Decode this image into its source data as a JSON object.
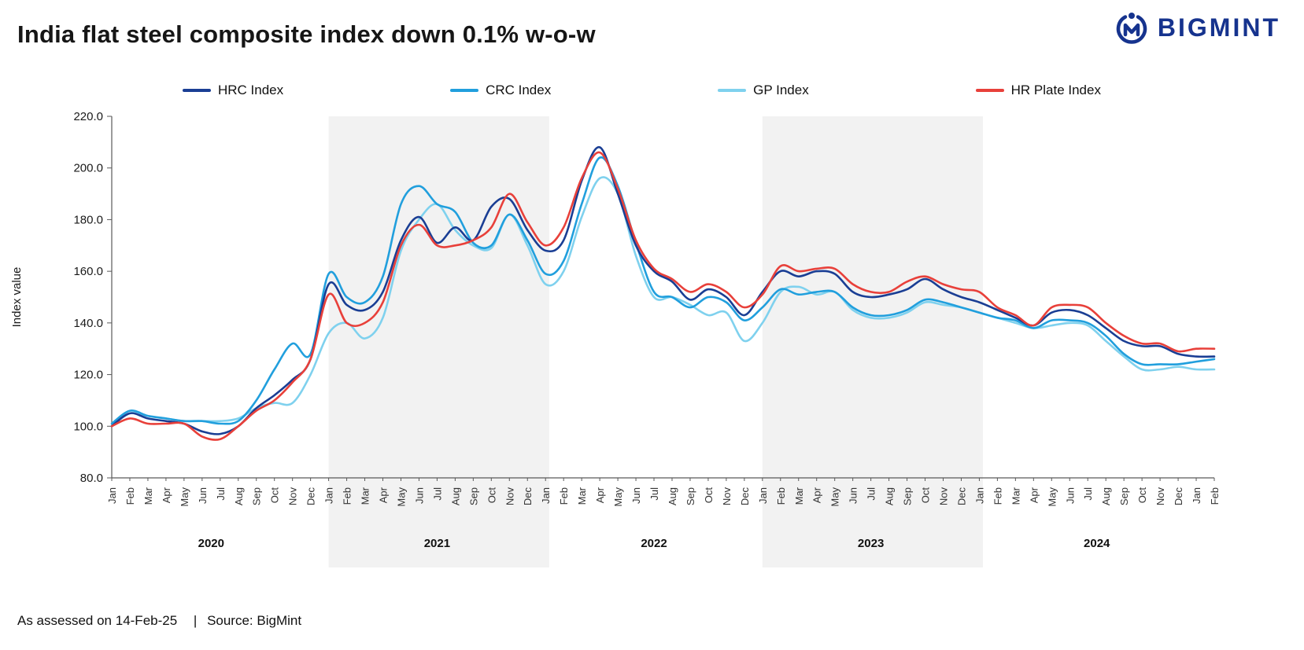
{
  "header": {
    "title": "India flat steel composite index down 0.1% w-o-w",
    "brand": "BIGMINT"
  },
  "footer": {
    "assessed": "As assessed on 14-Feb-25",
    "separator": "|",
    "source": "Source: BigMint"
  },
  "chart_data": {
    "type": "line",
    "title": "India flat steel composite index down 0.1% w-o-w",
    "ylabel": "Index value",
    "ylim": [
      80,
      220
    ],
    "yticks": [
      80,
      100,
      120,
      140,
      160,
      180,
      200,
      220
    ],
    "ytick_labels": [
      "80.0",
      "100.0",
      "120.0",
      "140.0",
      "160.0",
      "180.0",
      "200.0",
      "220.0"
    ],
    "grid": false,
    "legend_position": "top",
    "axis_color": "#595959",
    "band_color": "#f2f2f2",
    "bands": [
      {
        "from": 12,
        "to": 24.2
      },
      {
        "from": 36,
        "to": 48.2
      }
    ],
    "years": [
      {
        "label": "2020",
        "center": 5.5
      },
      {
        "label": "2021",
        "center": 18
      },
      {
        "label": "2022",
        "center": 30
      },
      {
        "label": "2023",
        "center": 42
      },
      {
        "label": "2024",
        "center": 54.5
      }
    ],
    "x_labels": [
      "Jan",
      "Feb",
      "Mar",
      "Apr",
      "May",
      "Jun",
      "Jul",
      "Aug",
      "Sep",
      "Oct",
      "Nov",
      "Dec",
      "Jan",
      "Feb",
      "Mar",
      "Apr",
      "May",
      "Jun",
      "Jul",
      "Aug",
      "Sep",
      "Oct",
      "Nov",
      "Dec",
      "Jan",
      "Feb",
      "Mar",
      "Apr",
      "May",
      "Jun",
      "Jul",
      "Aug",
      "Sep",
      "Oct",
      "Nov",
      "Dec",
      "Jan",
      "Feb",
      "Mar",
      "Apr",
      "May",
      "Jun",
      "Jul",
      "Aug",
      "Sep",
      "Oct",
      "Nov",
      "Dec",
      "Jan",
      "Feb",
      "Mar",
      "Apr",
      "May",
      "Jun",
      "Jul",
      "Aug",
      "Sep",
      "Oct",
      "Nov",
      "Dec",
      "Jan",
      "Feb"
    ],
    "series": [
      {
        "name": "HRC Index",
        "color": "#1a3e94",
        "z": 3,
        "values": [
          100,
          105,
          103,
          102,
          101,
          98,
          97,
          100,
          107,
          112,
          118,
          126,
          155,
          147,
          145,
          152,
          172,
          181,
          171,
          177,
          172,
          185,
          188,
          176,
          168,
          172,
          195,
          208,
          190,
          170,
          160,
          156,
          149,
          153,
          150,
          143,
          152,
          160,
          158,
          160,
          159,
          152,
          150,
          151,
          153,
          157,
          153,
          150,
          148,
          145,
          142,
          139,
          144,
          145,
          143,
          138,
          133,
          131,
          131,
          128,
          127,
          127
        ]
      },
      {
        "name": "CRC Index",
        "color": "#219fdd",
        "z": 2,
        "values": [
          101,
          106,
          104,
          103,
          102,
          102,
          101,
          102,
          110,
          122,
          132,
          128,
          159,
          150,
          148,
          158,
          186,
          193,
          186,
          183,
          171,
          170,
          182,
          172,
          159,
          164,
          186,
          204,
          193,
          171,
          152,
          150,
          146,
          150,
          148,
          141,
          146,
          153,
          151,
          152,
          152,
          146,
          143,
          143,
          145,
          149,
          148,
          146,
          144,
          142,
          141,
          138,
          141,
          141,
          140,
          135,
          128,
          124,
          124,
          124,
          125,
          126
        ]
      },
      {
        "name": "GP Index",
        "color": "#7fd1ee",
        "z": 1,
        "values": [
          100,
          105,
          104,
          103,
          102,
          102,
          102,
          103,
          107,
          109,
          109,
          120,
          136,
          140,
          134,
          142,
          168,
          180,
          186,
          176,
          170,
          169,
          182,
          170,
          155,
          160,
          181,
          196,
          190,
          166,
          150,
          150,
          147,
          143,
          144,
          133,
          140,
          152,
          154,
          151,
          152,
          145,
          142,
          142,
          144,
          148,
          147,
          146,
          144,
          142,
          140,
          138,
          139,
          140,
          139,
          133,
          127,
          122,
          122,
          123,
          122,
          122
        ]
      },
      {
        "name": "HR Plate Index",
        "color": "#e8403a",
        "z": 4,
        "values": [
          100,
          103,
          101,
          101,
          101,
          96,
          95,
          100,
          106,
          110,
          117,
          126,
          151,
          140,
          140,
          148,
          170,
          178,
          170,
          170,
          172,
          177,
          190,
          179,
          170,
          177,
          196,
          206,
          192,
          172,
          161,
          157,
          152,
          155,
          152,
          146,
          151,
          162,
          160,
          161,
          161,
          155,
          152,
          152,
          156,
          158,
          155,
          153,
          152,
          146,
          143,
          139,
          146,
          147,
          146,
          140,
          135,
          132,
          132,
          129,
          130,
          130
        ]
      }
    ]
  }
}
